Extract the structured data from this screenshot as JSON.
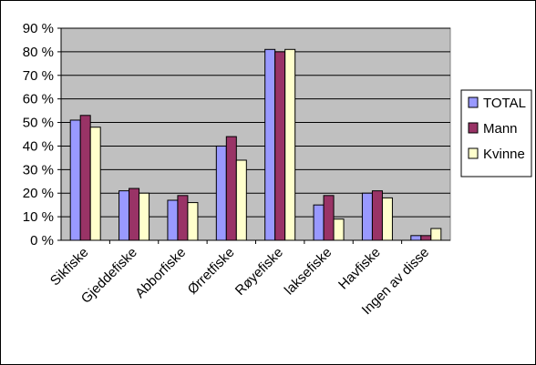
{
  "chart_data": {
    "type": "bar",
    "categories": [
      "Sikfiske",
      "Gjeddefiske",
      "Abborfiske",
      "Ørretfiske",
      "Røyefiske",
      "laksefiske",
      "Havfiske",
      "Ingen av disse"
    ],
    "series": [
      {
        "name": "TOTAL",
        "color": "#9999ff",
        "values": [
          51,
          21,
          17,
          40,
          81,
          15,
          20,
          2
        ]
      },
      {
        "name": "Mann",
        "color": "#993366",
        "values": [
          53,
          22,
          19,
          44,
          80,
          19,
          21,
          2
        ]
      },
      {
        "name": "Kvinne",
        "color": "#ffffcc",
        "values": [
          48,
          20,
          16,
          34,
          81,
          9,
          18,
          5
        ]
      }
    ],
    "yticks": [
      "0 %",
      "10 %",
      "20 %",
      "30 %",
      "40 %",
      "50 %",
      "60 %",
      "70 %",
      "80 %",
      "90 %"
    ],
    "ylim": [
      0,
      90
    ],
    "grid": true,
    "legend_position": "right",
    "plot_background": "#c0c0c0",
    "title": "",
    "xlabel": "",
    "ylabel": ""
  }
}
